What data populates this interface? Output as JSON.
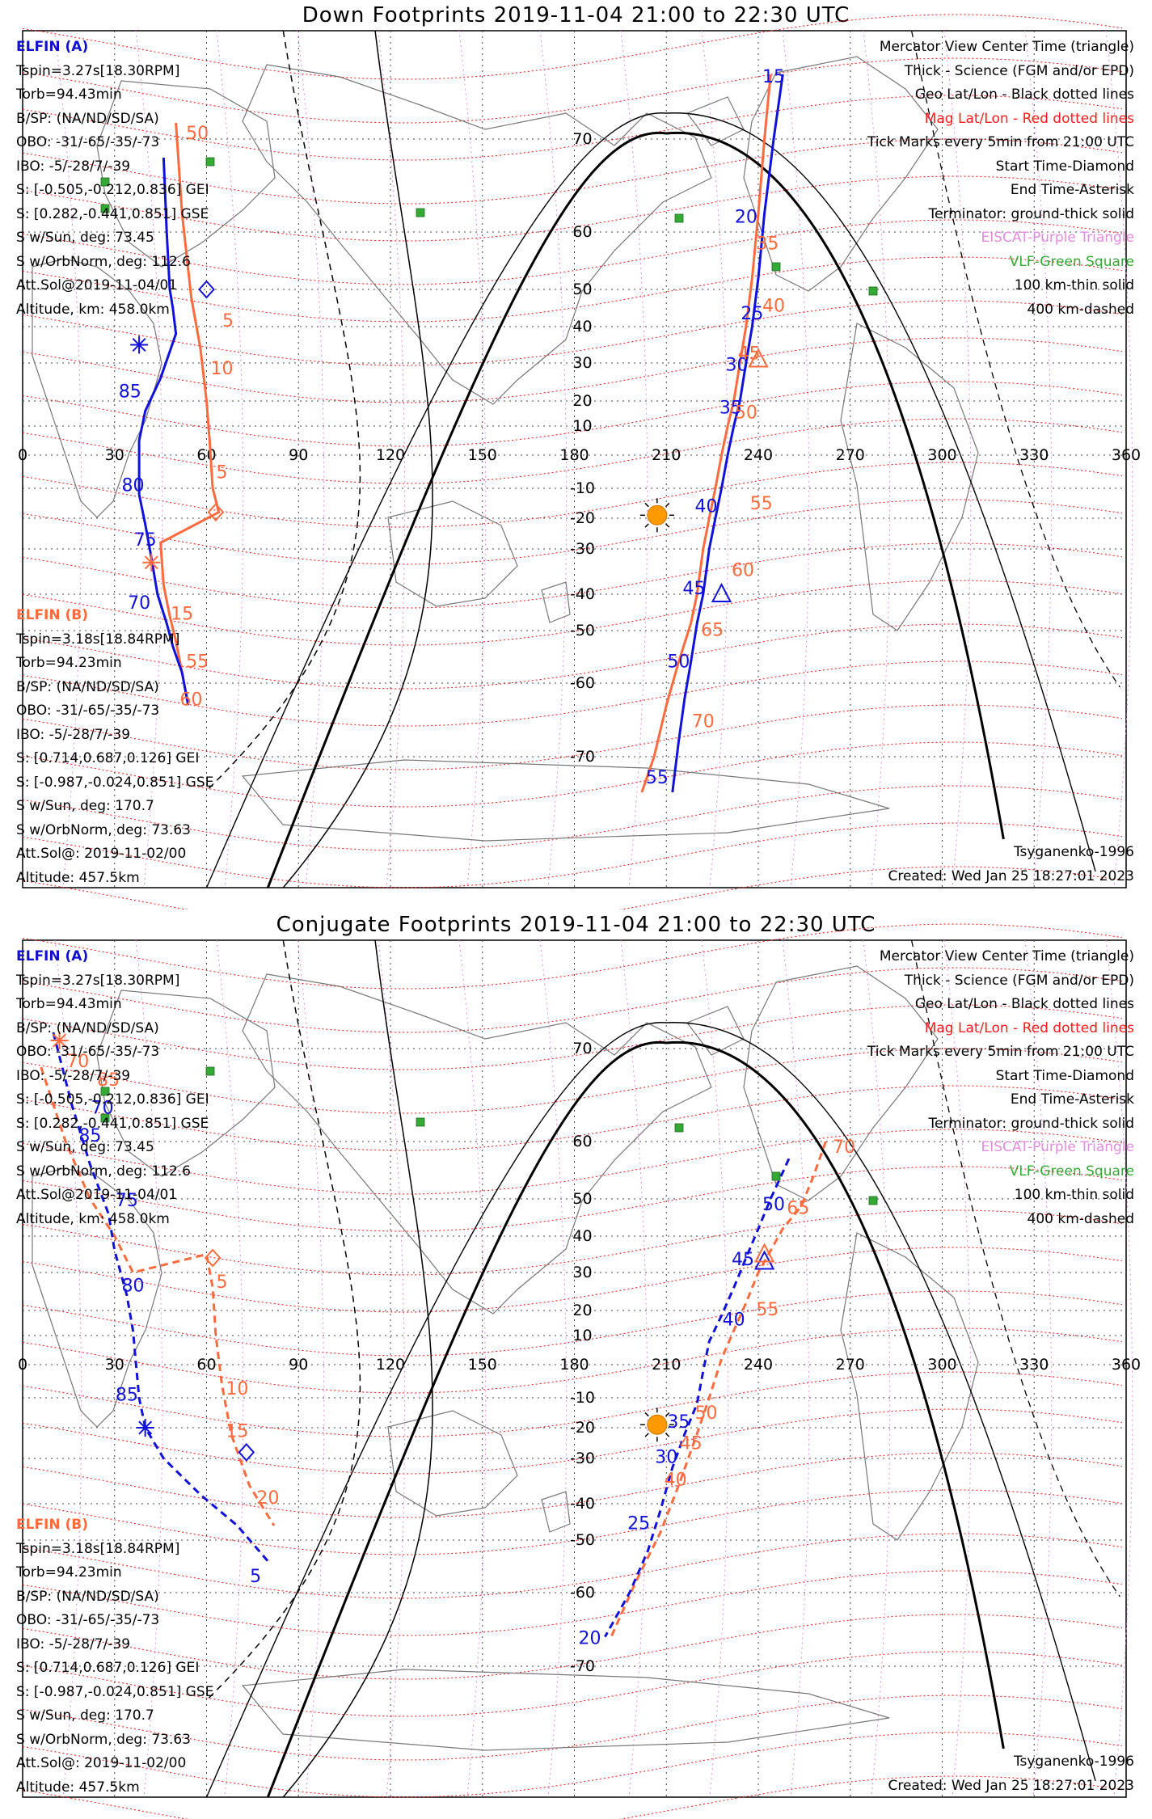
{
  "colors": {
    "elfin_a": "#1111dd",
    "elfin_b": "#ff6a3d",
    "mag_lines": "#ff2222",
    "geo_lines": "#444444",
    "eiscat": "#e58be0",
    "vlf": "#33aa33",
    "sun": "#ff9900"
  },
  "axis": {
    "lon_ticks": [
      "0",
      "30",
      "60",
      "90",
      "120",
      "150",
      "180",
      "210",
      "240",
      "270",
      "300",
      "330",
      "360"
    ],
    "lat_ticks": [
      "70",
      "60",
      "50",
      "40",
      "30",
      "20",
      "10",
      "-10",
      "-20",
      "-30",
      "-40",
      "-50",
      "-60",
      "-70"
    ]
  },
  "legend": {
    "line1": "Mercator View Center Time (triangle)",
    "line2": "Thick - Science (FGM and/or EPD)",
    "line3": "Geo Lat/Lon - Black dotted lines",
    "line4": "Mag Lat/Lon - Red dotted lines",
    "line5": "Tick Marks every 5min from 21:00 UTC",
    "line6": "Start Time-Diamond",
    "line7": "End Time-Asterisk",
    "line8": "Terminator: ground-thick solid",
    "line9": "EISCAT-Purple Triangle",
    "line10": "VLF-Green Square",
    "line11": "100 km-thin solid",
    "line12": "400 km-dashed"
  },
  "elfin_a": {
    "name": "ELFIN (A)",
    "tspin": "Tspin=3.27s[18.30RPM]",
    "torb": "Torb=94.43min",
    "bsp": "B/SP: (NA/ND/SD/SA)",
    "obo": "OBO: -31/-65/-35/-73",
    "ibo": "IBO: -5/-28/7/-39",
    "s_gei": "S: [-0.505,-0.212,0.836] GEI",
    "s_gse": "S: [0.282,-0.441,0.851] GSE",
    "s_sun": "S w/Sun, deg: 73.45",
    "s_orb": "S w/OrbNorm, deg: 112.6",
    "att": "Att.Sol@2019-11-04/01",
    "alt": "Altitude, km: 458.0km"
  },
  "elfin_b": {
    "name": "ELFIN (B)",
    "tspin": "Tspin=3.18s[18.84RPM]",
    "torb": "Torb=94.23min",
    "bsp": "B/SP: (NA/ND/SD/SA)",
    "obo": "OBO: -31/-65/-35/-73",
    "ibo": "IBO: -5/-28/7/-39",
    "s_gei": "S: [0.714,0.687,0.126] GEI",
    "s_gse": "S: [-0.987,-0.024,0.851] GSE",
    "s_sun": "S w/Sun, deg: 170.7",
    "s_orb": "S w/OrbNorm, deg: 73.63",
    "att": "Att.Sol@: 2019-11-02/00",
    "alt": "Altitude: 457.5km"
  },
  "model": "Tsyganenko-1996",
  "created": "Created: Wed Jan 25 18:27:01 2023",
  "panels": [
    {
      "title": "Down Footprints 2019-11-04 21:00 to 22:30 UTC",
      "track_a": {
        "west": [
          [
            46,
            68
          ],
          [
            47,
            60
          ],
          [
            48,
            50
          ],
          [
            49,
            45
          ],
          [
            50,
            38
          ],
          [
            45,
            26
          ],
          [
            40,
            16
          ],
          [
            38,
            5
          ],
          [
            38,
            -5
          ],
          [
            38,
            -12
          ],
          [
            40,
            -22
          ],
          [
            42,
            -32
          ],
          [
            44,
            -40
          ],
          [
            47,
            -48
          ],
          [
            49,
            -53
          ],
          [
            52,
            -58
          ],
          [
            54,
            -63
          ]
        ],
        "east": [
          [
            248,
            78
          ],
          [
            245,
            70
          ],
          [
            242,
            62
          ],
          [
            240,
            52
          ],
          [
            238,
            40
          ],
          [
            236,
            30
          ],
          [
            234,
            20
          ],
          [
            232,
            10
          ],
          [
            230,
            0
          ],
          [
            228,
            -10
          ],
          [
            226,
            -20
          ],
          [
            224,
            -30
          ],
          [
            222,
            -40
          ],
          [
            220,
            -48
          ],
          [
            218,
            -56
          ],
          [
            216,
            -62
          ],
          [
            214,
            -68
          ],
          [
            212,
            -74
          ]
        ]
      },
      "track_b": {
        "west": [
          [
            50,
            72
          ],
          [
            52,
            62
          ],
          [
            55,
            48
          ],
          [
            58,
            34
          ],
          [
            60,
            20
          ],
          [
            61,
            5
          ],
          [
            62,
            -10
          ],
          [
            64,
            -18
          ],
          [
            45,
            -28
          ],
          [
            46,
            -38
          ],
          [
            48,
            -46
          ],
          [
            50,
            -52
          ],
          [
            52,
            -58
          ],
          [
            54,
            -63
          ]
        ],
        "east": [
          [
            244,
            78
          ],
          [
            242,
            70
          ],
          [
            240,
            62
          ],
          [
            238,
            52
          ],
          [
            236,
            40
          ],
          [
            234,
            30
          ],
          [
            232,
            20
          ],
          [
            230,
            10
          ],
          [
            228,
            0
          ],
          [
            226,
            -10
          ],
          [
            224,
            -20
          ],
          [
            222,
            -30
          ],
          [
            220,
            -40
          ],
          [
            218,
            -48
          ],
          [
            214,
            -56
          ],
          [
            210,
            -63
          ],
          [
            206,
            -70
          ],
          [
            202,
            -74
          ]
        ]
      },
      "labels_a": [
        [
          "15",
          245,
          77
        ],
        [
          "20",
          236,
          61
        ],
        [
          "25",
          238,
          42
        ],
        [
          "30",
          233,
          28
        ],
        [
          "35",
          231,
          15
        ],
        [
          "40",
          223,
          -18
        ],
        [
          "45",
          219,
          -40
        ],
        [
          "50",
          214,
          -57
        ],
        [
          "55",
          207,
          -73
        ],
        [
          "70",
          38,
          -44
        ],
        [
          "75",
          40,
          -29
        ],
        [
          "80",
          36,
          -11
        ],
        [
          "85",
          35,
          21
        ]
      ],
      "labels_b": [
        [
          "35",
          243,
          57
        ],
        [
          "40",
          245,
          44
        ],
        [
          "45",
          237,
          31
        ],
        [
          "50",
          236,
          13
        ],
        [
          "55",
          241,
          -17
        ],
        [
          "60",
          235,
          -36
        ],
        [
          "65",
          225,
          -51
        ],
        [
          "70",
          222,
          -66
        ],
        [
          "5",
          67,
          40
        ],
        [
          "10",
          65,
          27
        ],
        [
          "5",
          65,
          -7
        ],
        [
          "15",
          52,
          -47
        ],
        [
          "55",
          57,
          -57
        ],
        [
          "60",
          55,
          -63
        ],
        [
          "50",
          57,
          70
        ]
      ],
      "markers": {
        "diamond_a": [
          60,
          50
        ],
        "diamond_b": [
          63,
          -18
        ],
        "star_a": [
          38,
          35
        ],
        "star_b": [
          42,
          -33
        ],
        "tri_a": [
          228,
          -40
        ],
        "tri_b": [
          240,
          31
        ]
      },
      "dashed_tracks": false
    },
    {
      "title": "Conjugate Footprints 2019-11-04 21:00 to 22:30 UTC",
      "track_a": {
        "west": [
          [
            10,
            72
          ],
          [
            16,
            64
          ],
          [
            22,
            56
          ],
          [
            28,
            46
          ],
          [
            30,
            36
          ],
          [
            34,
            24
          ],
          [
            36,
            12
          ],
          [
            37,
            0
          ],
          [
            38,
            -10
          ],
          [
            40,
            -20
          ],
          [
            46,
            -30
          ],
          [
            58,
            -38
          ],
          [
            70,
            -46
          ],
          [
            80,
            -54
          ]
        ],
        "east": [
          [
            250,
            57
          ],
          [
            244,
            50
          ],
          [
            240,
            42
          ],
          [
            236,
            34
          ],
          [
            232,
            26
          ],
          [
            228,
            18
          ],
          [
            224,
            8
          ],
          [
            222,
            -2
          ],
          [
            220,
            -12
          ],
          [
            216,
            -22
          ],
          [
            212,
            -32
          ],
          [
            208,
            -42
          ],
          [
            204,
            -52
          ],
          [
            198,
            -60
          ],
          [
            190,
            -66
          ]
        ]
      },
      "track_b": {
        "west": [
          [
            6,
            68
          ],
          [
            14,
            60
          ],
          [
            22,
            50
          ],
          [
            30,
            40
          ],
          [
            36,
            30
          ],
          [
            60,
            35
          ],
          [
            62,
            26
          ],
          [
            63,
            10
          ],
          [
            65,
            -6
          ],
          [
            68,
            -22
          ],
          [
            74,
            -36
          ],
          [
            82,
            -46
          ]
        ],
        "east": [
          [
            262,
            60
          ],
          [
            258,
            54
          ],
          [
            254,
            48
          ],
          [
            248,
            42
          ],
          [
            244,
            36
          ],
          [
            240,
            30
          ],
          [
            236,
            22
          ],
          [
            232,
            12
          ],
          [
            228,
            2
          ],
          [
            224,
            -10
          ],
          [
            220,
            -22
          ],
          [
            214,
            -36
          ],
          [
            208,
            -48
          ],
          [
            200,
            -58
          ],
          [
            192,
            -66
          ]
        ]
      },
      "labels_a": [
        [
          "20",
          185,
          -67
        ],
        [
          "25",
          201,
          -47
        ],
        [
          "30",
          210,
          -31
        ],
        [
          "35",
          214,
          -20
        ],
        [
          "40",
          232,
          14
        ],
        [
          "45",
          235,
          32
        ],
        [
          "50",
          245,
          47
        ],
        [
          "5",
          76,
          -58
        ],
        [
          "75",
          34,
          48
        ],
        [
          "80",
          36,
          25
        ],
        [
          "85",
          34,
          -11
        ],
        [
          "70",
          26,
          63
        ],
        [
          "85",
          22,
          60
        ]
      ],
      "labels_b": [
        [
          "70",
          268,
          58
        ],
        [
          "65",
          253,
          46
        ],
        [
          "55",
          243,
          18
        ],
        [
          "50",
          223,
          -17
        ],
        [
          "45",
          218,
          -27
        ],
        [
          "40",
          213,
          -36
        ],
        [
          "5",
          65,
          26
        ],
        [
          "10",
          70,
          -9
        ],
        [
          "15",
          70,
          -23
        ],
        [
          "20",
          80,
          -40
        ],
        [
          "85",
          28,
          66
        ],
        [
          "70",
          18,
          68
        ]
      ],
      "markers": {
        "diamond_a": [
          73,
          -28
        ],
        "diamond_b": [
          62,
          34
        ],
        "star_a": [
          40,
          -20
        ],
        "star_b": [
          12,
          71
        ],
        "tri_a": [
          242,
          33
        ],
        "tri_b": [
          242,
          35
        ]
      },
      "dashed_tracks": true
    }
  ]
}
